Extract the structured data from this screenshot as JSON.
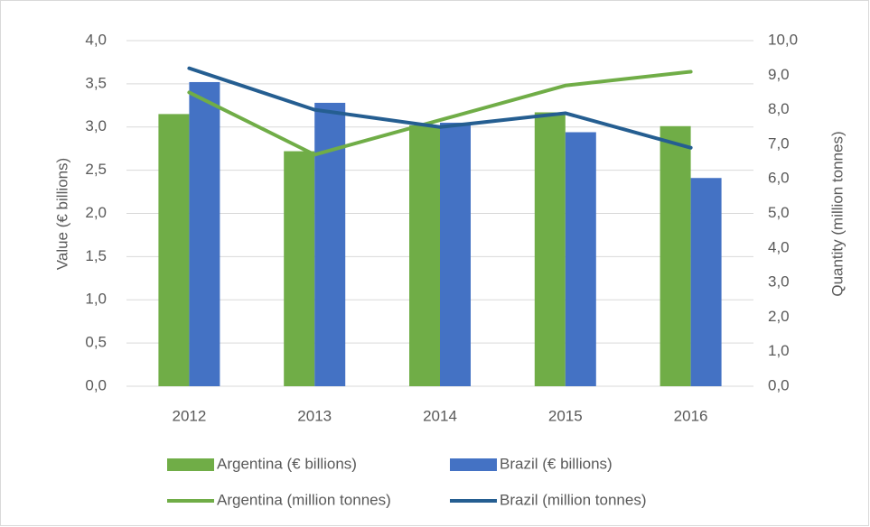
{
  "chart_data": {
    "type": "bar",
    "categories": [
      "2012",
      "2013",
      "2014",
      "2015",
      "2016"
    ],
    "series": [
      {
        "name": "Argentina (€ billions)",
        "color": "#70ad47",
        "type": "bar",
        "values": [
          3.15,
          2.72,
          3.02,
          3.17,
          3.01
        ]
      },
      {
        "name": "Brazil (€ billions)",
        "color": "#4472c4",
        "type": "bar",
        "values": [
          3.52,
          3.28,
          3.05,
          2.94,
          2.41
        ]
      },
      {
        "name": "Argentina (million tonnes)",
        "color": "#70ad47",
        "type": "line",
        "axis": "y2",
        "values": [
          8.5,
          6.7,
          7.7,
          8.7,
          9.1
        ]
      },
      {
        "name": "Brazil (million tonnes)",
        "color": "#255e91",
        "type": "line",
        "axis": "y2",
        "values": [
          9.2,
          8.0,
          7.5,
          7.9,
          6.9
        ]
      }
    ],
    "ylabel": "Value (€ billions)",
    "y2label": "Quantity (million tonnes)",
    "ylim": [
      0,
      4
    ],
    "yticks": [
      {
        "value": 0,
        "label": "0,0"
      },
      {
        "value": 0.5,
        "label": "0,5"
      },
      {
        "value": 1,
        "label": "1,0"
      },
      {
        "value": 1.5,
        "label": "1,5"
      },
      {
        "value": 2,
        "label": "2,0"
      },
      {
        "value": 2.5,
        "label": "2,5"
      },
      {
        "value": 3,
        "label": "3,0"
      },
      {
        "value": 3.5,
        "label": "3,5"
      },
      {
        "value": 4,
        "label": "4,0"
      }
    ],
    "y2lim": [
      0,
      10
    ],
    "y2ticks": [
      {
        "value": 0,
        "label": "0,0"
      },
      {
        "value": 1,
        "label": "1,0"
      },
      {
        "value": 2,
        "label": "2,0"
      },
      {
        "value": 3,
        "label": "3,0"
      },
      {
        "value": 4,
        "label": "4,0"
      },
      {
        "value": 5,
        "label": "5,0"
      },
      {
        "value": 6,
        "label": "6,0"
      },
      {
        "value": 7,
        "label": "7,0"
      },
      {
        "value": 8,
        "label": "8,0"
      },
      {
        "value": 9,
        "label": "9,0"
      },
      {
        "value": 10,
        "label": "10,0"
      }
    ],
    "grid": true,
    "legend": "bottom"
  }
}
